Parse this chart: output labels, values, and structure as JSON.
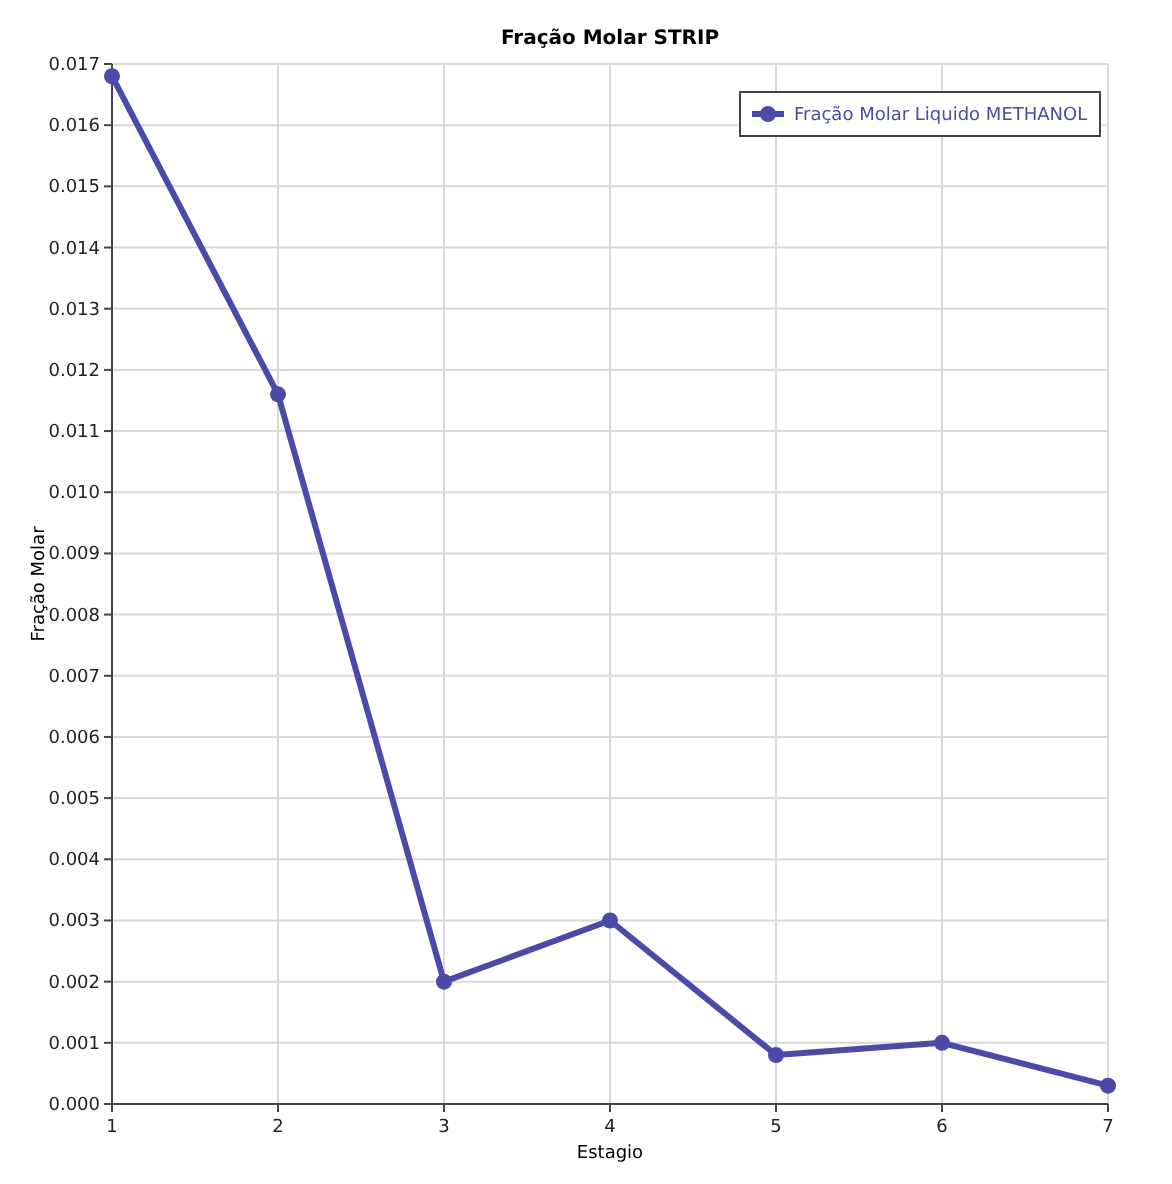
{
  "chart_data": {
    "type": "line",
    "title": "Fração Molar STRIP",
    "xlabel": "Estagio",
    "ylabel": "Fração Molar",
    "x": [
      1,
      2,
      3,
      4,
      5,
      6,
      7
    ],
    "series": [
      {
        "name": "Fração Molar Liquido METHANOL",
        "color": "#4a4aa8",
        "values": [
          0.0168,
          0.0116,
          0.002,
          0.003,
          0.0008,
          0.001,
          0.0003
        ]
      }
    ],
    "xlim": [
      1,
      7
    ],
    "xticks": [
      1,
      2,
      3,
      4,
      5,
      6,
      7
    ],
    "ylim": [
      0,
      0.017
    ],
    "yticks": [
      {
        "value": 0,
        "label": "0.000"
      },
      0.001,
      0.002,
      0.003,
      0.004,
      0.005,
      0.006,
      0.007,
      0.008,
      0.009,
      {
        "value": 0.01,
        "label": "0.010"
      },
      0.011,
      0.012,
      0.013,
      0.014,
      0.015,
      0.016,
      0.017
    ],
    "grid": true,
    "legend": "top right",
    "marker": "circle",
    "line_style": "solid"
  }
}
